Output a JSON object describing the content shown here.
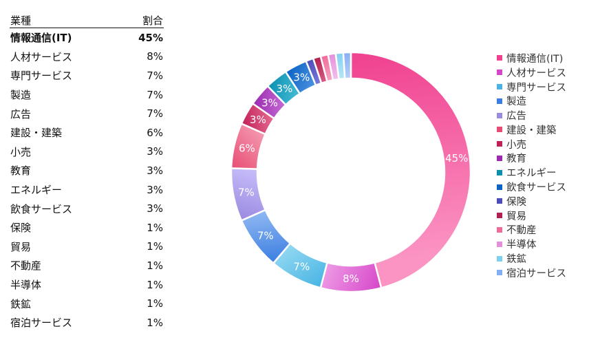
{
  "table": {
    "header": {
      "category": "業種",
      "share": "割合"
    },
    "rows": [
      {
        "label": "情報通信(IT)",
        "value": "45%"
      },
      {
        "label": "人材サービス",
        "value": "8%"
      },
      {
        "label": "専門サービス",
        "value": "7%"
      },
      {
        "label": "製造",
        "value": "7%"
      },
      {
        "label": "広告",
        "value": "7%"
      },
      {
        "label": "建設・建築",
        "value": "6%"
      },
      {
        "label": "小売",
        "value": "3%"
      },
      {
        "label": "教育",
        "value": "3%"
      },
      {
        "label": "エネルギー",
        "value": "3%"
      },
      {
        "label": "飲食サービス",
        "value": "3%"
      },
      {
        "label": "保険",
        "value": "1%"
      },
      {
        "label": "貿易",
        "value": "1%"
      },
      {
        "label": "不動産",
        "value": "1%"
      },
      {
        "label": "半導体",
        "value": "1%"
      },
      {
        "label": "鉄鉱",
        "value": "1%"
      },
      {
        "label": "宿泊サービス",
        "value": "1%"
      }
    ]
  },
  "chart_data": {
    "type": "pie",
    "style": "donut",
    "legend_position": "right",
    "categories": [
      "情報通信(IT)",
      "人材サービス",
      "専門サービス",
      "製造",
      "広告",
      "建設・建築",
      "小売",
      "教育",
      "エネルギー",
      "飲食サービス",
      "保険",
      "貿易",
      "不動産",
      "半導体",
      "鉄鉱",
      "宿泊サービス"
    ],
    "values": [
      45,
      8,
      7,
      7,
      7,
      6,
      3,
      3,
      3,
      3,
      1,
      1,
      1,
      1,
      1,
      1
    ],
    "data_labels": [
      "45%",
      "8%",
      "7%",
      "7%",
      "7%",
      "6%",
      "3%",
      "3%",
      "3%",
      "3%",
      "",
      "",
      "",
      "",
      "",
      ""
    ],
    "colors": [
      [
        "#f0418f",
        "#fb94c3"
      ],
      [
        "#d646c9",
        "#ee9ae5"
      ],
      [
        "#47b4e3",
        "#93d8f2"
      ],
      [
        "#3b7ee1",
        "#90b8f2"
      ],
      [
        "#9b8ae0",
        "#c8befa"
      ],
      [
        "#e84c74",
        "#f49ab0"
      ],
      [
        "#c11f57",
        "#e46d93"
      ],
      [
        "#9b2ab0",
        "#c56bd4"
      ],
      [
        "#0a8fb0",
        "#47bcd6"
      ],
      [
        "#0a62c4",
        "#4d92e0"
      ],
      [
        "#4b4cb8",
        "#7b7cdb"
      ],
      [
        "#b01f4f",
        "#d95c84"
      ],
      [
        "#f06a98",
        "#f8a4c3"
      ],
      [
        "#e28fdc",
        "#f2c1ee"
      ],
      [
        "#7fd0ef",
        "#b8e7f8"
      ],
      [
        "#84aef2",
        "#b8d0f8"
      ]
    ]
  }
}
